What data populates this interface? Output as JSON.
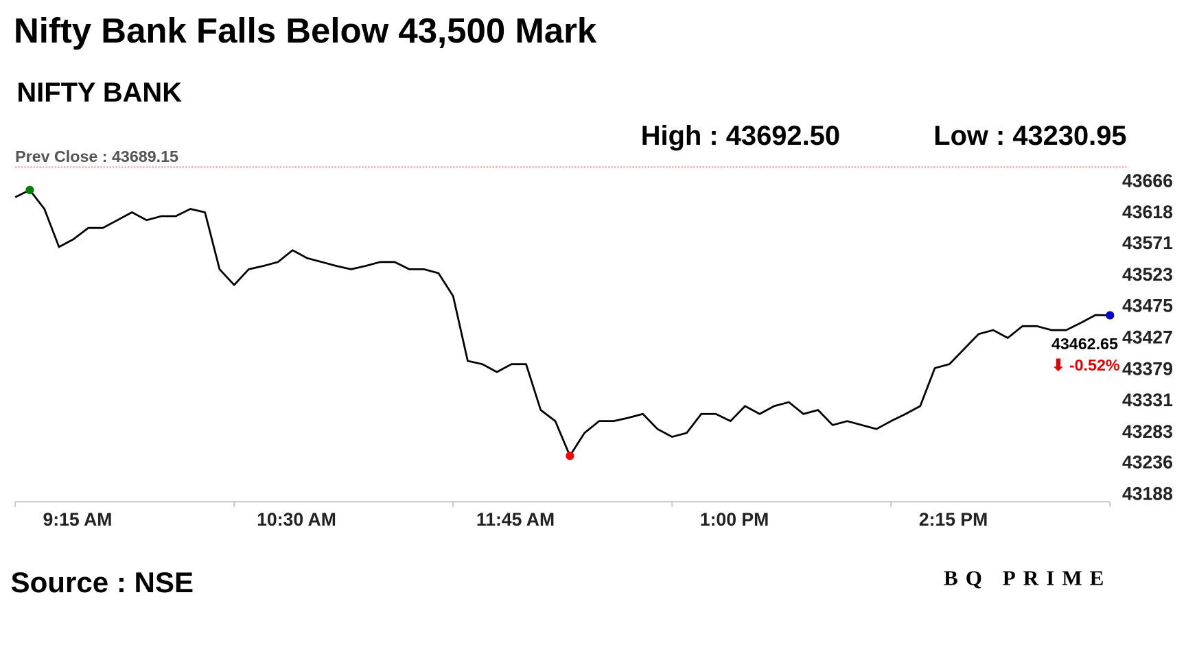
{
  "chart_data": {
    "type": "line",
    "title": "Nifty Bank Falls Below 43,500 Mark",
    "subtitle": "NIFTY BANK",
    "high_label": "High : 43692.50",
    "low_label": "Low : 43230.95",
    "prev_close": {
      "value": 43689.15,
      "label": "Prev Close : 43689.15"
    },
    "last_label": "43462.65",
    "change_label": "⬇ -0.52%",
    "source": "Source : NSE",
    "brand": "BQ PRIME",
    "x": [
      "9:15 AM",
      "9:20 AM",
      "9:25 AM",
      "9:30 AM",
      "9:35 AM",
      "9:40 AM",
      "9:45 AM",
      "9:50 AM",
      "9:55 AM",
      "10:00 AM",
      "10:05 AM",
      "10:10 AM",
      "10:15 AM",
      "10:20 AM",
      "10:25 AM",
      "10:30 AM",
      "10:35 AM",
      "10:40 AM",
      "10:45 AM",
      "10:50 AM",
      "10:55 AM",
      "11:00 AM",
      "11:05 AM",
      "11:10 AM",
      "11:15 AM",
      "11:20 AM",
      "11:25 AM",
      "11:30 AM",
      "11:35 AM",
      "11:40 AM",
      "11:45 AM",
      "11:50 AM",
      "11:55 AM",
      "12:00 PM",
      "12:05 PM",
      "12:10 PM",
      "12:15 PM",
      "12:20 PM",
      "12:25 PM",
      "12:30 PM",
      "12:35 PM",
      "12:40 PM",
      "12:45 PM",
      "12:50 PM",
      "12:55 PM",
      "1:00 PM",
      "1:05 PM",
      "1:10 PM",
      "1:15 PM",
      "1:20 PM",
      "1:25 PM",
      "1:30 PM",
      "1:35 PM",
      "1:40 PM",
      "1:45 PM",
      "1:50 PM",
      "1:55 PM",
      "2:00 PM",
      "2:05 PM",
      "2:10 PM",
      "2:15 PM",
      "2:20 PM",
      "2:25 PM",
      "2:30 PM",
      "2:35 PM",
      "2:40 PM",
      "2:45 PM",
      "2:50 PM",
      "2:55 PM",
      "3:00 PM",
      "3:05 PM",
      "3:10 PM",
      "3:15 PM",
      "3:20 PM",
      "3:25 PM",
      "3:30 PM"
    ],
    "series": [
      {
        "name": "NIFTY BANK",
        "color": "#000000",
        "values": [
          43643,
          43654,
          43625,
          43567,
          43579,
          43596,
          43596,
          43608,
          43620,
          43608,
          43614,
          43614,
          43625,
          43620,
          43533,
          43509,
          43533,
          43538,
          43544,
          43562,
          43550,
          43544,
          43538,
          43533,
          43538,
          43544,
          43544,
          43533,
          43533,
          43527,
          43492,
          43393,
          43388,
          43376,
          43388,
          43388,
          43318,
          43301,
          43248,
          43283,
          43301,
          43301,
          43306,
          43312,
          43289,
          43277,
          43283,
          43312,
          43312,
          43301,
          43324,
          43312,
          43324,
          43330,
          43312,
          43318,
          43295,
          43301,
          43295,
          43289,
          43301,
          43312,
          43324,
          43382,
          43388,
          43411,
          43434,
          43440,
          43428,
          43446,
          43446,
          43440,
          43440,
          43451,
          43463,
          43462.65
        ]
      }
    ],
    "markers": [
      {
        "index": 1,
        "color": "#008000"
      },
      {
        "index": 38,
        "color": "#ff0000"
      },
      {
        "index": 75,
        "color": "#0000cc"
      }
    ],
    "xlim": [
      "9:15 AM",
      "3:30 PM"
    ],
    "xticks": [
      "9:15 AM",
      "10:30 AM",
      "11:45 AM",
      "1:00 PM",
      "2:15 PM",
      "3:30 PM"
    ],
    "ylim": [
      43178,
      43712
    ],
    "yticks": [
      43188,
      43236,
      43283,
      43331,
      43379,
      43427,
      43475,
      43523,
      43571,
      43618,
      43666
    ],
    "grid": false
  }
}
